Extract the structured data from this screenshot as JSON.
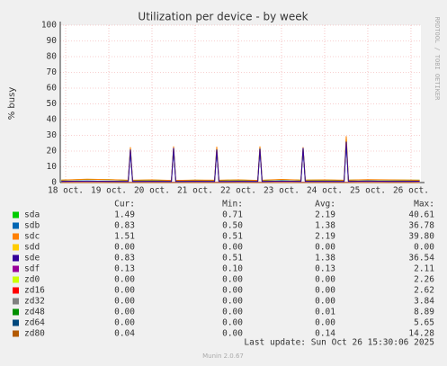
{
  "chart_data": {
    "type": "line",
    "title": "Utilization per device - by week",
    "y_label": "% busy",
    "side_label": "RRDTOOL / TOBI OETIKER",
    "x": [
      17.9,
      18.5,
      19.0,
      19.45,
      19.5,
      19.55,
      20.0,
      20.45,
      20.5,
      20.55,
      21.0,
      21.45,
      21.5,
      21.55,
      22.0,
      22.45,
      22.5,
      22.55,
      23.0,
      23.45,
      23.5,
      23.55,
      24.0,
      24.45,
      24.5,
      24.55,
      25.0,
      25.5,
      26.0,
      26.2
    ],
    "xlim": [
      17.875,
      26.23
    ],
    "xticks": [
      {
        "value": 18,
        "label": "18 oct."
      },
      {
        "value": 19,
        "label": "19 oct."
      },
      {
        "value": 20,
        "label": "20 oct."
      },
      {
        "value": 21,
        "label": "21 oct."
      },
      {
        "value": 22,
        "label": "22 oct."
      },
      {
        "value": 23,
        "label": "23 oct."
      },
      {
        "value": 24,
        "label": "24 oct."
      },
      {
        "value": 25,
        "label": "25 oct."
      },
      {
        "value": 26,
        "label": "26 oct."
      }
    ],
    "ylim": [
      0,
      100
    ],
    "yticks": [
      0,
      10,
      20,
      30,
      40,
      50,
      60,
      70,
      80,
      90,
      100
    ],
    "grid": true,
    "stat_headers": [
      "Cur:",
      "Min:",
      "Avg:",
      "Max:"
    ],
    "series": [
      {
        "name": "sda",
        "color": "#00cc00",
        "cur": "1.49",
        "min": "0.71",
        "avg": "2.19",
        "max": "40.61",
        "values": [
          1.5,
          2.0,
          1.8,
          1.4,
          21.5,
          1.4,
          1.6,
          1.3,
          22.0,
          1.3,
          1.5,
          1.4,
          21.8,
          1.4,
          1.6,
          1.3,
          22.5,
          1.4,
          1.9,
          1.5,
          22.0,
          1.5,
          1.6,
          1.4,
          28.0,
          1.5,
          1.7,
          1.6,
          1.5,
          1.49
        ]
      },
      {
        "name": "sdb",
        "color": "#0066b3",
        "cur": "0.83",
        "min": "0.50",
        "avg": "1.38",
        "max": "36.78",
        "values": [
          0.8,
          0.9,
          0.8,
          0.7,
          20.0,
          0.7,
          0.8,
          0.7,
          21.0,
          0.7,
          0.8,
          0.7,
          20.5,
          0.7,
          0.8,
          0.7,
          21.0,
          0.7,
          0.9,
          0.8,
          21.0,
          0.8,
          0.8,
          0.7,
          25.0,
          0.8,
          0.9,
          0.8,
          0.8,
          0.83
        ]
      },
      {
        "name": "sdc",
        "color": "#ff8000",
        "cur": "1.51",
        "min": "0.51",
        "avg": "2.19",
        "max": "39.80",
        "values": [
          1.6,
          2.1,
          1.9,
          1.5,
          22.5,
          1.5,
          1.7,
          1.4,
          23.0,
          1.4,
          1.6,
          1.5,
          22.8,
          1.5,
          1.7,
          1.4,
          23.0,
          1.5,
          2.0,
          1.6,
          22.5,
          1.6,
          1.7,
          1.5,
          29.5,
          1.6,
          1.8,
          1.7,
          1.6,
          1.51
        ]
      },
      {
        "name": "sdd",
        "color": "#ffcc00",
        "cur": "0.00",
        "min": "0.00",
        "avg": "0.00",
        "max": "0.00",
        "values": [
          0,
          0,
          0,
          0,
          0,
          0,
          0,
          0,
          0,
          0,
          0,
          0,
          0,
          0,
          0,
          0,
          0,
          0,
          0,
          0,
          0,
          0,
          0,
          0,
          0,
          0,
          0,
          0,
          0,
          0
        ]
      },
      {
        "name": "sde",
        "color": "#330099",
        "cur": "0.83",
        "min": "0.51",
        "avg": "1.38",
        "max": "36.54",
        "values": [
          0.8,
          0.9,
          0.8,
          0.7,
          21.0,
          0.7,
          0.8,
          0.7,
          22.0,
          0.7,
          0.8,
          0.7,
          21.0,
          0.7,
          0.8,
          0.7,
          21.5,
          0.7,
          0.9,
          0.8,
          22.0,
          0.8,
          0.8,
          0.7,
          26.0,
          0.8,
          0.9,
          0.8,
          0.8,
          0.83
        ]
      },
      {
        "name": "sdf",
        "color": "#990099",
        "cur": "0.13",
        "min": "0.10",
        "avg": "0.13",
        "max": "2.11",
        "values": [
          0.13,
          0.13,
          0.13,
          0.13,
          0.13,
          0.13,
          0.13,
          0.13,
          0.13,
          0.13,
          0.13,
          0.13,
          0.13,
          0.13,
          0.13,
          0.13,
          0.13,
          0.13,
          0.13,
          0.13,
          0.13,
          0.13,
          0.13,
          0.13,
          0.13,
          0.13,
          0.13,
          0.13,
          0.13,
          0.13
        ]
      },
      {
        "name": "zd0",
        "color": "#ccff00",
        "cur": "0.00",
        "min": "0.00",
        "avg": "0.00",
        "max": "2.26",
        "values": [
          0,
          0,
          0,
          0,
          0,
          0,
          0,
          0,
          0,
          0,
          0,
          0,
          0,
          0,
          0,
          0,
          0,
          0,
          0,
          0,
          0,
          0,
          0,
          0,
          0,
          0,
          0,
          0,
          0,
          0
        ]
      },
      {
        "name": "zd16",
        "color": "#ff0000",
        "cur": "0.00",
        "min": "0.00",
        "avg": "0.00",
        "max": "2.62",
        "values": [
          0,
          0,
          0,
          0,
          0,
          0,
          0,
          0,
          0,
          0,
          0,
          0,
          0,
          0,
          0,
          0,
          0,
          0,
          0,
          0,
          0,
          0,
          0,
          0,
          0,
          0,
          0,
          0,
          0,
          0
        ]
      },
      {
        "name": "zd32",
        "color": "#808080",
        "cur": "0.00",
        "min": "0.00",
        "avg": "0.00",
        "max": "3.84",
        "values": [
          0,
          0,
          0,
          0,
          0,
          0,
          0,
          0,
          0,
          0,
          0,
          0,
          0,
          0,
          0,
          0,
          0,
          0,
          0,
          0,
          0,
          0,
          0,
          0,
          0,
          0,
          0,
          0,
          0,
          0
        ]
      },
      {
        "name": "zd48",
        "color": "#008f00",
        "cur": "0.00",
        "min": "0.00",
        "avg": "0.01",
        "max": "8.89",
        "values": [
          0,
          0,
          0,
          0,
          0,
          0,
          0,
          0,
          0,
          0,
          0,
          0,
          0,
          0,
          0,
          0,
          0,
          0,
          0,
          0,
          0,
          0,
          0,
          0,
          0,
          0,
          0,
          0,
          0,
          0
        ]
      },
      {
        "name": "zd64",
        "color": "#00487d",
        "cur": "0.00",
        "min": "0.00",
        "avg": "0.00",
        "max": "5.65",
        "values": [
          0,
          0,
          0,
          0,
          0,
          0,
          0,
          0,
          0,
          0,
          0,
          0,
          0,
          0,
          0,
          0,
          0,
          0,
          0,
          0,
          0,
          0,
          0,
          0,
          0,
          0,
          0,
          0,
          0,
          0
        ]
      },
      {
        "name": "zd80",
        "color": "#b35a00",
        "cur": "0.04",
        "min": "0.00",
        "avg": "0.14",
        "max": "14.28",
        "values": [
          0,
          0,
          0,
          0,
          0,
          0,
          0,
          0,
          0,
          0,
          0,
          0,
          0,
          0,
          0,
          0,
          0,
          0,
          0,
          0,
          0,
          0,
          0,
          0,
          0,
          0,
          0,
          0,
          0,
          0
        ]
      }
    ],
    "last_update": "Last update: Sun Oct 26 15:30:06 2025",
    "footer": "Munin 2.0.67"
  }
}
